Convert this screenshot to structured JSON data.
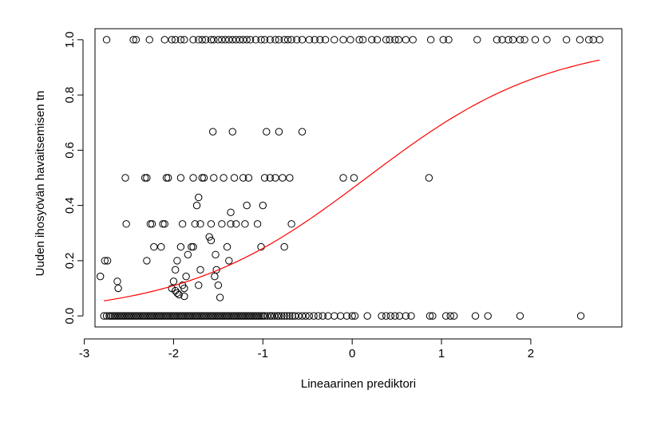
{
  "chart_data": {
    "type": "scatter",
    "title": "",
    "xlabel": "Lineaarinen prediktori",
    "ylabel": "Uuden ihosyövän havaitsemisen tn",
    "xlim": [
      -2.88,
      3.02
    ],
    "ylim": [
      -0.04,
      1.04
    ],
    "x_ticks": [
      -3,
      -2,
      -1,
      0,
      1,
      2
    ],
    "x_tick_labels": [
      "-3",
      "-2",
      "-1",
      "0",
      "1",
      "2"
    ],
    "y_ticks": [
      0.0,
      0.2,
      0.4,
      0.6,
      0.8,
      1.0
    ],
    "y_tick_labels": [
      "0.0",
      "0.2",
      "0.4",
      "0.6",
      "0.8",
      "1.0"
    ],
    "grid": false,
    "legend": "none",
    "point_color": "#000000",
    "curve_color": "#ff0000",
    "series": [
      {
        "kind": "points",
        "points": [
          [
            -2.78,
            0
          ],
          [
            -2.75,
            0
          ],
          [
            -2.72,
            0
          ],
          [
            -2.7,
            0
          ],
          [
            -2.68,
            0
          ],
          [
            -2.66,
            0
          ],
          [
            -2.64,
            0
          ],
          [
            -2.62,
            0
          ],
          [
            -2.6,
            0
          ],
          [
            -2.58,
            0
          ],
          [
            -2.56,
            0
          ],
          [
            -2.54,
            0
          ],
          [
            -2.52,
            0
          ],
          [
            -2.5,
            0
          ],
          [
            -2.48,
            0
          ],
          [
            -2.46,
            0
          ],
          [
            -2.44,
            0
          ],
          [
            -2.42,
            0
          ],
          [
            -2.4,
            0
          ],
          [
            -2.38,
            0
          ],
          [
            -2.36,
            0
          ],
          [
            -2.34,
            0
          ],
          [
            -2.32,
            0
          ],
          [
            -2.3,
            0
          ],
          [
            -2.28,
            0
          ],
          [
            -2.26,
            0
          ],
          [
            -2.24,
            0
          ],
          [
            -2.22,
            0
          ],
          [
            -2.2,
            0
          ],
          [
            -2.18,
            0
          ],
          [
            -2.16,
            0
          ],
          [
            -2.14,
            0
          ],
          [
            -2.12,
            0
          ],
          [
            -2.1,
            0
          ],
          [
            -2.08,
            0
          ],
          [
            -2.06,
            0
          ],
          [
            -2.04,
            0
          ],
          [
            -2.02,
            0
          ],
          [
            -2.0,
            0
          ],
          [
            -1.98,
            0
          ],
          [
            -1.96,
            0
          ],
          [
            -1.94,
            0
          ],
          [
            -1.92,
            0
          ],
          [
            -1.9,
            0
          ],
          [
            -1.88,
            0
          ],
          [
            -1.86,
            0
          ],
          [
            -1.84,
            0
          ],
          [
            -1.82,
            0
          ],
          [
            -1.8,
            0
          ],
          [
            -1.78,
            0
          ],
          [
            -1.76,
            0
          ],
          [
            -1.74,
            0
          ],
          [
            -1.72,
            0
          ],
          [
            -1.7,
            0
          ],
          [
            -1.68,
            0
          ],
          [
            -1.66,
            0
          ],
          [
            -1.64,
            0
          ],
          [
            -1.62,
            0
          ],
          [
            -1.6,
            0
          ],
          [
            -1.58,
            0
          ],
          [
            -1.56,
            0
          ],
          [
            -1.54,
            0
          ],
          [
            -1.52,
            0
          ],
          [
            -1.5,
            0
          ],
          [
            -1.48,
            0
          ],
          [
            -1.46,
            0
          ],
          [
            -1.44,
            0
          ],
          [
            -1.42,
            0
          ],
          [
            -1.4,
            0
          ],
          [
            -1.38,
            0
          ],
          [
            -1.36,
            0
          ],
          [
            -1.34,
            0
          ],
          [
            -1.32,
            0
          ],
          [
            -1.3,
            0
          ],
          [
            -1.28,
            0
          ],
          [
            -1.26,
            0
          ],
          [
            -1.24,
            0
          ],
          [
            -1.22,
            0
          ],
          [
            -1.2,
            0
          ],
          [
            -1.18,
            0
          ],
          [
            -1.16,
            0
          ],
          [
            -1.14,
            0
          ],
          [
            -1.12,
            0
          ],
          [
            -1.1,
            0
          ],
          [
            -1.08,
            0
          ],
          [
            -1.06,
            0
          ],
          [
            -1.04,
            0
          ],
          [
            -1.02,
            0
          ],
          [
            -1.0,
            0
          ],
          [
            -0.98,
            0
          ],
          [
            -0.95,
            0
          ],
          [
            -0.92,
            0
          ],
          [
            -0.9,
            0
          ],
          [
            -0.87,
            0
          ],
          [
            -0.84,
            0
          ],
          [
            -0.82,
            0
          ],
          [
            -0.79,
            0
          ],
          [
            -0.76,
            0
          ],
          [
            -0.73,
            0
          ],
          [
            -0.7,
            0
          ],
          [
            -0.67,
            0
          ],
          [
            -0.64,
            0
          ],
          [
            -0.6,
            0
          ],
          [
            -0.56,
            0
          ],
          [
            -0.52,
            0
          ],
          [
            -0.48,
            0
          ],
          [
            -0.43,
            0
          ],
          [
            -0.38,
            0
          ],
          [
            -0.33,
            0
          ],
          [
            -0.27,
            0
          ],
          [
            -0.2,
            0
          ],
          [
            -0.13,
            0
          ],
          [
            -0.06,
            0
          ],
          [
            0.0,
            0
          ],
          [
            0.03,
            0
          ],
          [
            0.17,
            0
          ],
          [
            0.33,
            0
          ],
          [
            0.38,
            0
          ],
          [
            0.43,
            0
          ],
          [
            0.48,
            0
          ],
          [
            0.53,
            0
          ],
          [
            0.6,
            0
          ],
          [
            0.66,
            0
          ],
          [
            0.87,
            0
          ],
          [
            0.9,
            0
          ],
          [
            1.05,
            0
          ],
          [
            1.1,
            0
          ],
          [
            1.14,
            0
          ],
          [
            1.38,
            0
          ],
          [
            1.52,
            0
          ],
          [
            1.88,
            0
          ],
          [
            2.56,
            0
          ],
          [
            -2.75,
            1
          ],
          [
            -2.45,
            1
          ],
          [
            -2.42,
            1
          ],
          [
            -2.27,
            1
          ],
          [
            -2.1,
            1
          ],
          [
            -2.02,
            1
          ],
          [
            -1.98,
            1
          ],
          [
            -1.92,
            1
          ],
          [
            -1.88,
            1
          ],
          [
            -1.78,
            1
          ],
          [
            -1.72,
            1
          ],
          [
            -1.68,
            1
          ],
          [
            -1.64,
            1
          ],
          [
            -1.58,
            1
          ],
          [
            -1.55,
            1
          ],
          [
            -1.5,
            1
          ],
          [
            -1.46,
            1
          ],
          [
            -1.42,
            1
          ],
          [
            -1.38,
            1
          ],
          [
            -1.34,
            1
          ],
          [
            -1.3,
            1
          ],
          [
            -1.26,
            1
          ],
          [
            -1.22,
            1
          ],
          [
            -1.18,
            1
          ],
          [
            -1.14,
            1
          ],
          [
            -1.08,
            1
          ],
          [
            -1.02,
            1
          ],
          [
            -0.98,
            1
          ],
          [
            -0.92,
            1
          ],
          [
            -0.86,
            1
          ],
          [
            -0.82,
            1
          ],
          [
            -0.76,
            1
          ],
          [
            -0.72,
            1
          ],
          [
            -0.68,
            1
          ],
          [
            -0.62,
            1
          ],
          [
            -0.56,
            1
          ],
          [
            -0.48,
            1
          ],
          [
            -0.42,
            1
          ],
          [
            -0.36,
            1
          ],
          [
            -0.3,
            1
          ],
          [
            -0.2,
            1
          ],
          [
            -0.1,
            1
          ],
          [
            -0.02,
            1
          ],
          [
            0.08,
            1
          ],
          [
            0.12,
            1
          ],
          [
            0.22,
            1
          ],
          [
            0.28,
            1
          ],
          [
            0.38,
            1
          ],
          [
            0.42,
            1
          ],
          [
            0.48,
            1
          ],
          [
            0.52,
            1
          ],
          [
            0.6,
            1
          ],
          [
            0.68,
            1
          ],
          [
            0.88,
            1
          ],
          [
            1.02,
            1
          ],
          [
            1.08,
            1
          ],
          [
            1.4,
            1
          ],
          [
            1.62,
            1
          ],
          [
            1.68,
            1
          ],
          [
            1.75,
            1
          ],
          [
            1.8,
            1
          ],
          [
            1.88,
            1
          ],
          [
            1.93,
            1
          ],
          [
            2.05,
            1
          ],
          [
            2.18,
            1
          ],
          [
            2.4,
            1
          ],
          [
            2.55,
            1
          ],
          [
            2.65,
            1
          ],
          [
            2.7,
            1
          ],
          [
            2.77,
            1
          ],
          [
            -2.82,
            0.143
          ],
          [
            -2.77,
            0.2
          ],
          [
            -2.74,
            0.2
          ],
          [
            -2.63,
            0.125
          ],
          [
            -2.62,
            0.1
          ],
          [
            -2.53,
            0.333
          ],
          [
            -2.54,
            0.5
          ],
          [
            -2.32,
            0.5
          ],
          [
            -2.3,
            0.5
          ],
          [
            -2.26,
            0.333
          ],
          [
            -2.24,
            0.333
          ],
          [
            -2.22,
            0.25
          ],
          [
            -2.3,
            0.2
          ],
          [
            -2.14,
            0.25
          ],
          [
            -2.12,
            0.333
          ],
          [
            -2.1,
            0.333
          ],
          [
            -2.08,
            0.5
          ],
          [
            -2.06,
            0.5
          ],
          [
            -2.02,
            0.1
          ],
          [
            -2.0,
            0.125
          ],
          [
            -1.98,
            0.091
          ],
          [
            -1.98,
            0.167
          ],
          [
            -1.96,
            0.083
          ],
          [
            -1.94,
            0.077
          ],
          [
            -1.96,
            0.2
          ],
          [
            -1.92,
            0.25
          ],
          [
            -1.92,
            0.5
          ],
          [
            -1.9,
            0.333
          ],
          [
            -1.9,
            0.111
          ],
          [
            -1.88,
            0.1
          ],
          [
            -1.88,
            0.071
          ],
          [
            -1.86,
            0.143
          ],
          [
            -1.84,
            0.222
          ],
          [
            -1.8,
            0.25
          ],
          [
            -1.78,
            0.5
          ],
          [
            -1.78,
            0.25
          ],
          [
            -1.76,
            0.333
          ],
          [
            -1.74,
            0.4
          ],
          [
            -1.72,
            0.429
          ],
          [
            -1.72,
            0.111
          ],
          [
            -1.7,
            0.167
          ],
          [
            -1.7,
            0.333
          ],
          [
            -1.68,
            0.5
          ],
          [
            -1.66,
            0.5
          ],
          [
            -1.6,
            0.286
          ],
          [
            -1.58,
            0.333
          ],
          [
            -1.58,
            0.273
          ],
          [
            -1.56,
            0.667
          ],
          [
            -1.55,
            0.5
          ],
          [
            -1.54,
            0.143
          ],
          [
            -1.53,
            0.222
          ],
          [
            -1.52,
            0.167
          ],
          [
            -1.5,
            0.111
          ],
          [
            -1.48,
            0.0667
          ],
          [
            -1.46,
            0.333
          ],
          [
            -1.44,
            0.5
          ],
          [
            -1.4,
            0.25
          ],
          [
            -1.38,
            0.2
          ],
          [
            -1.36,
            0.375
          ],
          [
            -1.36,
            0.333
          ],
          [
            -1.34,
            0.667
          ],
          [
            -1.32,
            0.5
          ],
          [
            -1.3,
            0.333
          ],
          [
            -1.22,
            0.5
          ],
          [
            -1.2,
            0.333
          ],
          [
            -1.18,
            0.4
          ],
          [
            -1.16,
            0.5
          ],
          [
            -1.06,
            0.333
          ],
          [
            -1.02,
            0.25
          ],
          [
            -1.0,
            0.4
          ],
          [
            -0.98,
            0.5
          ],
          [
            -0.96,
            0.667
          ],
          [
            -0.92,
            0.5
          ],
          [
            -0.86,
            0.5
          ],
          [
            -0.82,
            0.667
          ],
          [
            -0.78,
            0.5
          ],
          [
            -0.76,
            0.25
          ],
          [
            -0.7,
            0.5
          ],
          [
            -0.68,
            0.333
          ],
          [
            -0.56,
            0.667
          ],
          [
            -0.1,
            0.5
          ],
          [
            0.02,
            0.5
          ],
          [
            0.86,
            0.5
          ]
        ]
      },
      {
        "kind": "curve",
        "function": "logistic",
        "intercept": -0.156,
        "slope": 0.97,
        "x_range": [
          -2.78,
          2.77
        ]
      }
    ]
  }
}
